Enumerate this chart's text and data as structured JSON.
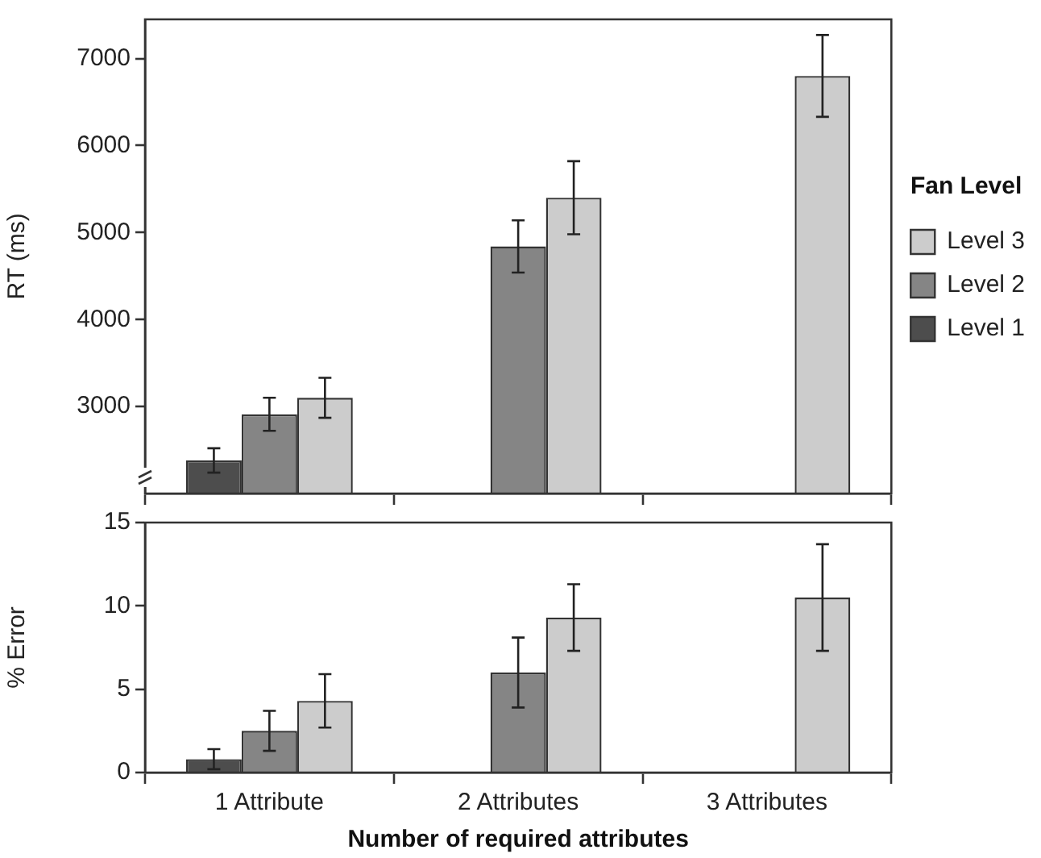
{
  "chart_data": [
    {
      "type": "bar",
      "ylabel": "RT (ms)",
      "categories": [
        null,
        null,
        null
      ],
      "series": [
        {
          "name": "Level 1",
          "color": "#4d4d4d",
          "values": [
            2380,
            null,
            null
          ],
          "errors": [
            140,
            null,
            null
          ]
        },
        {
          "name": "Level 2",
          "color": "#858585",
          "values": [
            2910,
            4840,
            null
          ],
          "errors": [
            190,
            300,
            null
          ]
        },
        {
          "name": "Level 3",
          "color": "#cccccc",
          "values": [
            3100,
            5400,
            6800
          ],
          "errors": [
            230,
            420,
            470
          ]
        }
      ],
      "ylim": [
        2000,
        7450
      ],
      "yticks": [
        3000,
        4000,
        5000,
        6000,
        7000
      ],
      "grid": false,
      "legend": "right",
      "legend_title": "Fan Level",
      "tick_labels": "y"
    },
    {
      "type": "bar",
      "ylabel": "% Error",
      "xlabel": "Number of required attributes",
      "categories": [
        "1 Attribute",
        "2 Attributes",
        "3 Attributes"
      ],
      "series": [
        {
          "color": "#4d4d4d",
          "values": [
            0.8,
            null,
            null
          ],
          "errors": [
            0.6,
            null,
            null
          ]
        },
        {
          "color": "#858585",
          "values": [
            2.5,
            6,
            null
          ],
          "errors": [
            1.2,
            2.1,
            null
          ]
        },
        {
          "color": "#cccccc",
          "values": [
            4.3,
            9.3,
            10.5
          ],
          "errors": [
            1.6,
            2,
            3.2
          ]
        }
      ],
      "ylim": [
        0,
        15
      ],
      "yticks": [
        0,
        5,
        10,
        15
      ],
      "grid": false
    }
  ]
}
